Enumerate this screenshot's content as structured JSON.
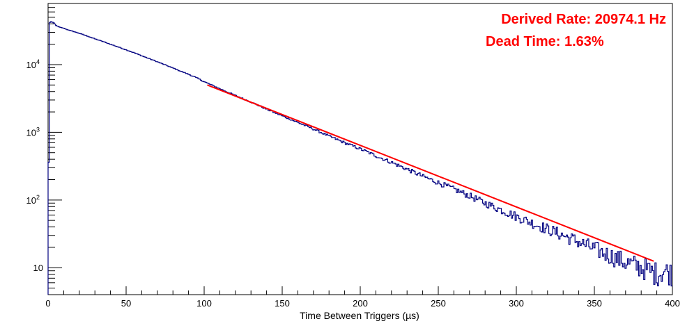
{
  "chart_data": {
    "type": "line",
    "xlabel": "Time Between Triggers (µs)",
    "ylabel": "",
    "xlim": [
      0,
      400
    ],
    "ylim": [
      4,
      80000
    ],
    "y_scale": "log",
    "x_ticks": [
      0,
      50,
      100,
      150,
      200,
      250,
      300,
      350,
      400
    ],
    "y_ticks": [
      {
        "value": 10,
        "label": "10",
        "sup": ""
      },
      {
        "value": 100,
        "label": "10",
        "sup": "2"
      },
      {
        "value": 1000,
        "label": "10",
        "sup": "3"
      },
      {
        "value": 10000,
        "label": "10",
        "sup": "4"
      }
    ],
    "grid": false,
    "legend": "none",
    "annotations": [
      {
        "text": "Derived Rate: 20974.1 Hz",
        "color": "#ff0000"
      },
      {
        "text": "Dead Time: 1.63%",
        "color": "#ff0000"
      }
    ],
    "series": [
      {
        "kind": "histogram",
        "color": "#000080",
        "x": [
          0,
          1,
          2,
          3,
          4,
          5,
          6,
          7,
          8,
          9,
          10,
          12,
          14,
          16,
          18,
          20,
          25,
          30,
          35,
          40,
          45,
          50,
          55,
          60,
          65,
          70,
          75,
          80,
          85,
          90,
          95,
          100,
          110,
          120,
          130,
          140,
          150,
          160,
          170,
          180,
          190,
          200,
          210,
          220,
          230,
          240,
          250,
          260,
          270,
          280,
          290,
          300,
          310,
          320,
          330,
          340,
          350,
          360,
          370,
          380,
          385,
          390,
          395,
          400
        ],
        "y": [
          15,
          42000,
          43000,
          42000,
          41000,
          38000,
          37000,
          36000,
          35500,
          35000,
          34500,
          33000,
          32000,
          31000,
          30000,
          29000,
          26500,
          24000,
          22000,
          20000,
          18200,
          16500,
          15000,
          13500,
          12200,
          11000,
          9900,
          8900,
          8000,
          7200,
          6400,
          5600,
          4400,
          3500,
          2800,
          2200,
          1750,
          1400,
          1120,
          880,
          700,
          570,
          450,
          360,
          285,
          225,
          180,
          145,
          115,
          90,
          72,
          57,
          46,
          37,
          30,
          24,
          19,
          15,
          12,
          10,
          9,
          8,
          9,
          8
        ]
      },
      {
        "kind": "fit",
        "color": "#ff0000",
        "x": [
          102,
          388
        ],
        "y": [
          5000,
          12.5
        ]
      }
    ]
  }
}
